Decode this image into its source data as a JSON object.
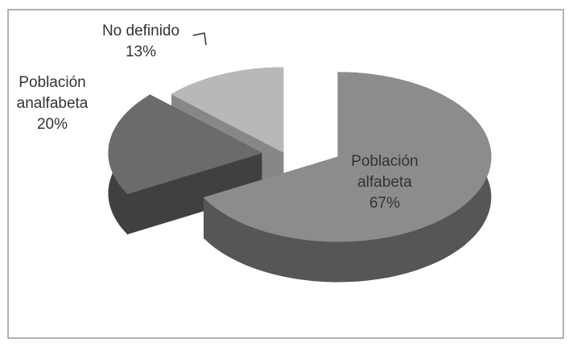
{
  "chart_data": {
    "type": "pie",
    "categories": [
      "Población alfabeta",
      "Población analfabeta",
      "No definido"
    ],
    "values": [
      67,
      20,
      13
    ],
    "value_labels": [
      "67%",
      "20%",
      "13%"
    ],
    "colors": [
      "#8c8c8c",
      "#6b6b6b",
      "#b8b8b8"
    ]
  }
}
